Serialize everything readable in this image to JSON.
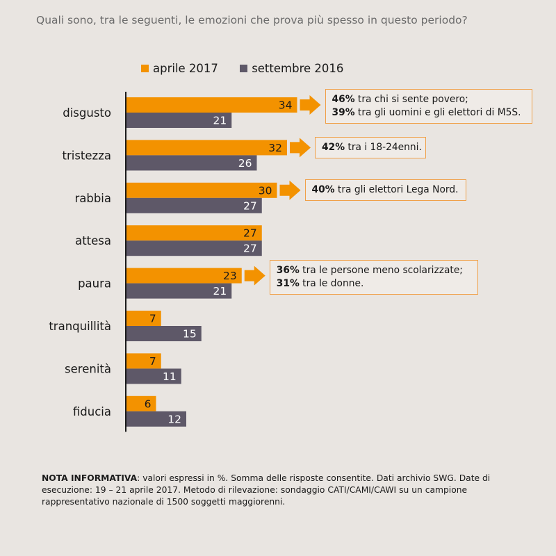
{
  "title": "Quali sono, tra le seguenti, le emozioni che prova più spesso in questo periodo?",
  "colors": {
    "orange": "#f39200",
    "purple": "#5e5868",
    "axis": "#1a1a1a"
  },
  "chart_data": {
    "type": "bar",
    "orientation": "horizontal",
    "title": "Quali sono, tra le seguenti, le emozioni che prova più spesso in questo periodo?",
    "categories": [
      "disgusto",
      "tristezza",
      "rabbia",
      "attesa",
      "paura",
      "tranquillità",
      "serenità",
      "fiducia"
    ],
    "series": [
      {
        "name": "aprile 2017",
        "color": "#f39200",
        "values": [
          34,
          32,
          30,
          27,
          23,
          7,
          7,
          6
        ]
      },
      {
        "name": "settembre 2016",
        "color": "#5e5868",
        "values": [
          21,
          26,
          27,
          27,
          21,
          15,
          11,
          12
        ]
      }
    ],
    "legend_position": "top",
    "grid": false,
    "xlim": [
      0,
      34
    ]
  },
  "legend": [
    "aprile 2017",
    "settembre 2016"
  ],
  "callouts": [
    {
      "category": "disgusto",
      "lines": [
        {
          "bold": "46%",
          "text": " tra chi si sente povero;"
        },
        {
          "bold": "39%",
          "text": " tra gli uomini e gli elettori di M5S."
        }
      ]
    },
    {
      "category": "tristezza",
      "lines": [
        {
          "bold": "42%",
          "text": " tra i 18-24enni."
        }
      ]
    },
    {
      "category": "rabbia",
      "lines": [
        {
          "bold": "40%",
          "text": " tra gli elettori Lega Nord."
        }
      ]
    },
    {
      "category": "paura",
      "lines": [
        {
          "bold": "36%",
          "text": " tra le persone meno scolarizzate;"
        },
        {
          "bold": "31%",
          "text": " tra le donne."
        }
      ]
    }
  ],
  "note": {
    "label": "NOTA INFORMATIVA",
    "text": ": valori espressi in %. Somma delle risposte consentite. Dati archivio SWG. Date di esecuzione: 19 – 21 aprile  2017. Metodo di rilevazione: sondaggio CATI/CAMI/CAWI su un campione rappresentativo nazionale di 1500 soggetti maggiorenni."
  }
}
